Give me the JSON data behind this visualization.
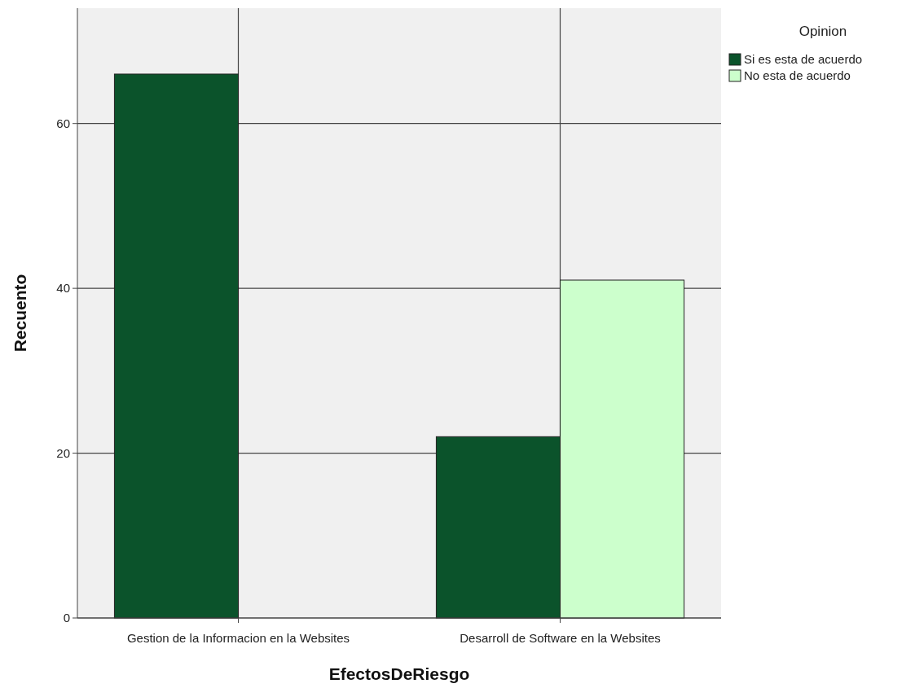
{
  "chart_data": {
    "type": "bar",
    "xlabel": "EfectosDeRiesgo",
    "ylabel": "Recuento",
    "legend_title": "Opinion",
    "categories": [
      "Gestion de la Informacion en la Websites",
      "Desarroll de Software en la Websites"
    ],
    "series": [
      {
        "name": "Si es esta de acuerdo",
        "color": "#0b532b",
        "values": [
          66,
          22
        ]
      },
      {
        "name": "No esta de acuerdo",
        "color": "#ccffcc",
        "values": [
          0,
          41
        ]
      }
    ],
    "ylim": [
      0,
      74
    ],
    "yticks": [
      0,
      20,
      40,
      60
    ],
    "grid": true,
    "legend": "top right"
  }
}
